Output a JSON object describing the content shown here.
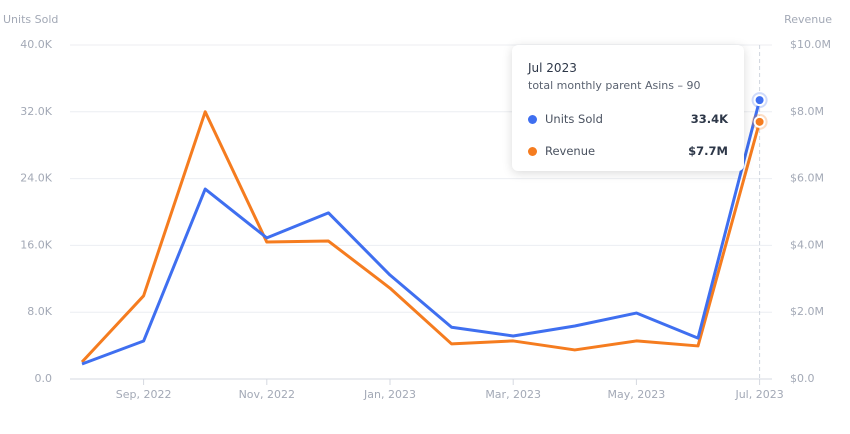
{
  "chart_data": {
    "type": "line",
    "y_label": "Units Sold",
    "y2_label": "Revenue",
    "categories": [
      null,
      "Sep, 2022",
      null,
      "Nov, 2022",
      null,
      "Jan, 2023",
      null,
      "Mar, 2023",
      null,
      "May, 2023",
      null,
      "Jul, 2023"
    ],
    "series": [
      {
        "name": "Units Sold",
        "color": "#3f6ff0",
        "values": [
          1800,
          4550,
          22750,
          16900,
          19900,
          12450,
          6200,
          5150,
          6350,
          7900,
          4900,
          33400
        ],
        "value_labels": [
          null,
          null,
          null,
          null,
          null,
          null,
          null,
          null,
          null,
          null,
          null,
          "33.4K"
        ]
      },
      {
        "name": "Revenue",
        "color": "#f57c1f",
        "axis": "y2",
        "values": [
          510000,
          2490000,
          8000000,
          4100000,
          4130000,
          2720000,
          1050000,
          1140000,
          870000,
          1140000,
          990000,
          7700000
        ],
        "value_labels": [
          null,
          null,
          null,
          null,
          null,
          null,
          null,
          null,
          null,
          null,
          null,
          "$7.7M"
        ]
      }
    ],
    "ylim": [
      0,
      40000
    ],
    "yticks": [
      {
        "value": 0,
        "label": "0.0"
      },
      {
        "value": 8000,
        "label": "8.0K"
      },
      {
        "value": 16000,
        "label": "16.0K"
      },
      {
        "value": 24000,
        "label": "24.0K"
      },
      {
        "value": 32000,
        "label": "32.0K"
      },
      {
        "value": 40000,
        "label": "40.0K"
      }
    ],
    "y2lim": [
      0,
      10000000
    ],
    "y2ticks": [
      {
        "value": 0,
        "label": "$0.0"
      },
      {
        "value": 2000000,
        "label": "$2.0M"
      },
      {
        "value": 4000000,
        "label": "$4.0M"
      },
      {
        "value": 6000000,
        "label": "$6.0M"
      },
      {
        "value": 8000000,
        "label": "$8.0M"
      },
      {
        "value": 10000000,
        "label": "$10.0M"
      }
    ],
    "grid": true,
    "tooltip": {
      "title": "Jul 2023",
      "subtitle": "total monthly parent Asins – 90"
    }
  }
}
